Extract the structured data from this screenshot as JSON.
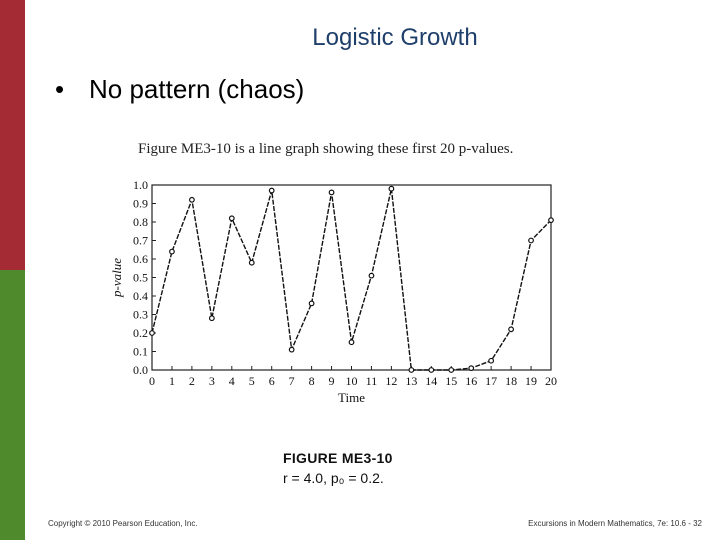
{
  "slide": {
    "title": "Logistic Growth",
    "bullet_symbol": "•",
    "bullet_text": "No  pattern (chaos)",
    "book_caption": "Figure ME3-10 is a line graph showing these first 20 p-values.",
    "figure_label": "FIGURE ME3-10",
    "figure_params": "r = 4.0, p₀ = 0.2.",
    "footer_left": "Copyright © 2010 Pearson Education, Inc.",
    "footer_right": "Excursions in Modern Mathematics, 7e: 10.6 - 32"
  },
  "colors": {
    "left_bar_top": "#a42a33",
    "left_bar_bottom": "#4f8a2d",
    "title": "#1f3f6b"
  },
  "chart_data": {
    "type": "line",
    "xlabel": "Time",
    "ylabel": "p-value",
    "x": [
      0,
      1,
      2,
      3,
      4,
      5,
      6,
      7,
      8,
      9,
      10,
      11,
      12,
      13,
      14,
      15,
      16,
      17,
      18,
      19,
      20
    ],
    "y": [
      0.2,
      0.64,
      0.92,
      0.28,
      0.82,
      0.58,
      0.97,
      0.11,
      0.36,
      0.96,
      0.15,
      0.51,
      0.98,
      0.0,
      0.0,
      0.0,
      0.01,
      0.05,
      0.22,
      0.7,
      0.81
    ],
    "xlim": [
      0,
      20
    ],
    "ylim": [
      0,
      1.0
    ],
    "x_ticks": [
      "0",
      "1",
      "2",
      "3",
      "4",
      "5",
      "6",
      "7",
      "8",
      "9",
      "10",
      "11",
      "12",
      "13",
      "14",
      "15",
      "16",
      "17",
      "18",
      "19",
      "20"
    ],
    "y_ticks": [
      "0.0",
      "0.1",
      "0.2",
      "0.3",
      "0.4",
      "0.5",
      "0.6",
      "0.7",
      "0.8",
      "0.9",
      "1.0"
    ],
    "grid": false
  }
}
